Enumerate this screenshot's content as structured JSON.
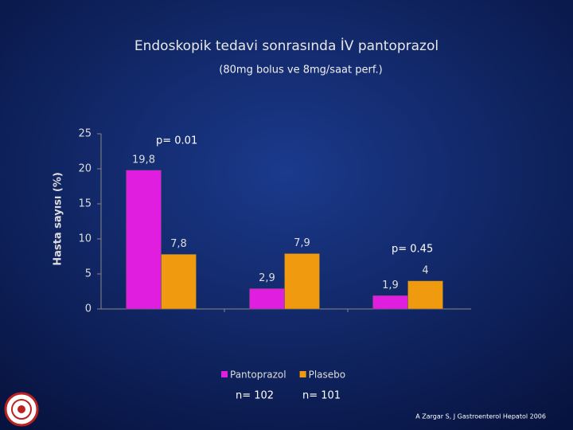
{
  "chart_data": {
    "type": "bar",
    "title": "Endoskopik tedavi sonrasında İV pantoprazol",
    "subtitle": "(80mg bolus ve 8mg/saat perf.)",
    "y_label": "Hasta sayısı (%)",
    "categories": [
      null,
      null,
      null
    ],
    "series": [
      {
        "name": "Pantoprazol",
        "color": "#e01ee0",
        "values": [
          19.8,
          2.9,
          1.9
        ],
        "value_labels": [
          "19,8",
          "2,9",
          "1,9"
        ]
      },
      {
        "name": "Plasebo",
        "color": "#f09a10",
        "values": [
          7.8,
          7.9,
          4
        ],
        "value_labels": [
          "7,8",
          "7,9",
          "4"
        ]
      }
    ],
    "ylim": [
      0,
      25
    ],
    "yticks": [
      0,
      5,
      10,
      15,
      20,
      25
    ],
    "annotations": [
      "p= 0.01",
      "p= 0.45"
    ],
    "sample_sizes": [
      "n= 102",
      "n= 101"
    ],
    "source": "A Zargar S, J Gastroenterol Hepatol 2006"
  }
}
